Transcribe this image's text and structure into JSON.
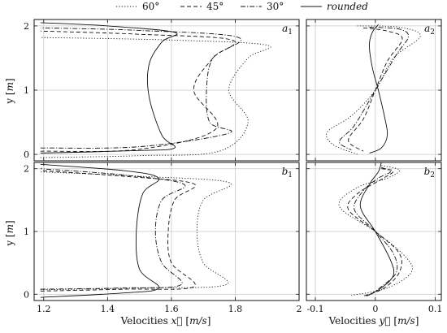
{
  "legend": [
    {
      "key": "s60",
      "label": "60°",
      "dash": "1.2 2.2"
    },
    {
      "key": "s45",
      "label": "45°",
      "dash": "5 3"
    },
    {
      "key": "s30",
      "label": "30°",
      "dash": "6 2 1.2 2"
    },
    {
      "key": "rounded",
      "label": "rounded",
      "dash": ""
    }
  ],
  "axes": {
    "ylabel_var": "y",
    "ylabel_unit": "m",
    "xlabel_left_prefix": "Velocities ",
    "xlabel_left_var": "x⃗",
    "xlabel_left_unit": "m/s",
    "xlabel_right_prefix": "Velocities ",
    "xlabel_right_var": "y⃗",
    "xlabel_right_unit": "m/s"
  },
  "panel_labels": {
    "a1": {
      "base": "a",
      "sub": "1"
    },
    "a2": {
      "base": "a",
      "sub": "2"
    },
    "b1": {
      "base": "b",
      "sub": "1"
    },
    "b2": {
      "base": "b",
      "sub": "2"
    }
  },
  "chart_data": [
    {
      "id": "a1",
      "type": "line",
      "xlim": [
        1.17,
        2.0
      ],
      "ylim": [
        -0.1,
        2.1
      ],
      "grid": true,
      "xticks": [
        1.2,
        1.4,
        1.6,
        1.8,
        2.0
      ],
      "yticks": [
        0,
        1,
        2
      ],
      "series": [
        {
          "name": "60°",
          "points": [
            [
              1.19,
              -0.05
            ],
            [
              1.5,
              -0.02
            ],
            [
              1.75,
              0.05
            ],
            [
              1.84,
              0.5
            ],
            [
              1.78,
              1.0
            ],
            [
              1.84,
              1.5
            ],
            [
              1.9,
              1.7
            ],
            [
              1.6,
              1.78
            ],
            [
              1.19,
              1.82
            ]
          ]
        },
        {
          "name": "45°",
          "points": [
            [
              1.19,
              0.05
            ],
            [
              1.5,
              0.08
            ],
            [
              1.74,
              0.4
            ],
            [
              1.67,
              1.0
            ],
            [
              1.73,
              1.5
            ],
            [
              1.79,
              1.78
            ],
            [
              1.5,
              1.87
            ],
            [
              1.19,
              1.92
            ]
          ]
        },
        {
          "name": "30°",
          "points": [
            [
              1.19,
              0.1
            ],
            [
              1.5,
              0.12
            ],
            [
              1.78,
              0.33
            ],
            [
              1.72,
              0.5
            ],
            [
              1.71,
              1.0
            ],
            [
              1.73,
              1.5
            ],
            [
              1.81,
              1.82
            ],
            [
              1.5,
              1.93
            ],
            [
              1.19,
              1.97
            ]
          ]
        },
        {
          "name": "rounded",
          "points": [
            [
              1.19,
              0.02
            ],
            [
              1.5,
              0.06
            ],
            [
              1.61,
              0.1
            ],
            [
              1.57,
              0.3
            ],
            [
              1.53,
              0.9
            ],
            [
              1.53,
              1.4
            ],
            [
              1.57,
              1.75
            ],
            [
              1.61,
              1.9
            ],
            [
              1.4,
              2.0
            ],
            [
              1.19,
              2.05
            ]
          ]
        }
      ]
    },
    {
      "id": "a2",
      "type": "line",
      "xlim": [
        -0.115,
        0.11
      ],
      "ylim": [
        -0.1,
        2.1
      ],
      "grid": true,
      "xticks": [
        -0.1,
        0,
        0.1
      ],
      "yticks": [
        0,
        1,
        2
      ],
      "series": [
        {
          "name": "60°",
          "points": [
            [
              -0.03,
              2.0
            ],
            [
              0.04,
              1.98
            ],
            [
              0.075,
              1.84
            ],
            [
              0.03,
              1.5
            ],
            [
              0.0,
              1.0
            ],
            [
              -0.04,
              0.6
            ],
            [
              -0.08,
              0.35
            ],
            [
              -0.07,
              0.15
            ],
            [
              -0.03,
              0.0
            ]
          ]
        },
        {
          "name": "45°",
          "points": [
            [
              -0.02,
              1.97
            ],
            [
              0.02,
              1.92
            ],
            [
              0.045,
              1.8
            ],
            [
              0.02,
              1.45
            ],
            [
              0.0,
              1.0
            ],
            [
              -0.02,
              0.55
            ],
            [
              -0.045,
              0.22
            ],
            [
              -0.02,
              0.05
            ]
          ]
        },
        {
          "name": "30°",
          "points": [
            [
              -0.01,
              1.98
            ],
            [
              0.04,
              1.95
            ],
            [
              0.055,
              1.83
            ],
            [
              0.035,
              1.55
            ],
            [
              0.0,
              1.0
            ],
            [
              -0.035,
              0.45
            ],
            [
              -0.06,
              0.2
            ],
            [
              -0.04,
              0.07
            ]
          ]
        },
        {
          "name": "rounded",
          "points": [
            [
              0.005,
              2.02
            ],
            [
              -0.005,
              1.9
            ],
            [
              -0.01,
              1.7
            ],
            [
              -0.005,
              1.35
            ],
            [
              0.005,
              1.0
            ],
            [
              0.015,
              0.6
            ],
            [
              0.02,
              0.3
            ],
            [
              0.01,
              0.1
            ],
            [
              -0.01,
              0.02
            ]
          ]
        }
      ]
    },
    {
      "id": "b1",
      "type": "line",
      "xlim": [
        1.17,
        2.0
      ],
      "ylim": [
        -0.1,
        2.1
      ],
      "grid": true,
      "xticks": [
        1.2,
        1.4,
        1.6,
        1.8,
        2.0
      ],
      "yticks": [
        0,
        1,
        2
      ],
      "series": [
        {
          "name": "60°",
          "points": [
            [
              1.19,
              0.07
            ],
            [
              1.5,
              0.1
            ],
            [
              1.77,
              0.15
            ],
            [
              1.7,
              0.5
            ],
            [
              1.68,
              1.0
            ],
            [
              1.7,
              1.5
            ],
            [
              1.78,
              1.78
            ],
            [
              1.5,
              1.88
            ],
            [
              1.19,
              1.95
            ]
          ]
        },
        {
          "name": "45°",
          "points": [
            [
              1.19,
              0.05
            ],
            [
              1.45,
              0.08
            ],
            [
              1.67,
              0.12
            ],
            [
              1.6,
              0.5
            ],
            [
              1.59,
              1.0
            ],
            [
              1.61,
              1.5
            ],
            [
              1.67,
              1.76
            ],
            [
              1.45,
              1.88
            ],
            [
              1.19,
              1.97
            ]
          ]
        },
        {
          "name": "30°",
          "points": [
            [
              1.19,
              0.08
            ],
            [
              1.45,
              0.1
            ],
            [
              1.63,
              0.15
            ],
            [
              1.57,
              0.5
            ],
            [
              1.55,
              1.0
            ],
            [
              1.57,
              1.5
            ],
            [
              1.64,
              1.75
            ],
            [
              1.45,
              1.9
            ],
            [
              1.19,
              2.0
            ]
          ]
        },
        {
          "name": "rounded",
          "points": [
            [
              1.19,
              -0.05
            ],
            [
              1.45,
              0.02
            ],
            [
              1.56,
              0.1
            ],
            [
              1.5,
              0.4
            ],
            [
              1.49,
              1.0
            ],
            [
              1.51,
              1.6
            ],
            [
              1.56,
              1.85
            ],
            [
              1.45,
              1.97
            ],
            [
              1.19,
              2.07
            ]
          ]
        }
      ]
    },
    {
      "id": "b2",
      "type": "line",
      "xlim": [
        -0.115,
        0.11
      ],
      "ylim": [
        -0.1,
        2.1
      ],
      "grid": true,
      "xticks": [
        -0.1,
        0,
        0.1
      ],
      "yticks": [
        0,
        1,
        2
      ],
      "series": [
        {
          "name": "60°",
          "points": [
            [
              0.01,
              2.05
            ],
            [
              0.04,
              1.98
            ],
            [
              0.02,
              1.85
            ],
            [
              -0.03,
              1.7
            ],
            [
              -0.06,
              1.4
            ],
            [
              0.0,
              1.0
            ],
            [
              0.05,
              0.6
            ],
            [
              0.06,
              0.35
            ],
            [
              0.02,
              0.1
            ],
            [
              -0.04,
              -0.02
            ]
          ]
        },
        {
          "name": "45°",
          "points": [
            [
              0.01,
              2.0
            ],
            [
              0.03,
              1.96
            ],
            [
              0.01,
              1.83
            ],
            [
              -0.03,
              1.6
            ],
            [
              -0.045,
              1.35
            ],
            [
              0.0,
              1.0
            ],
            [
              0.04,
              0.65
            ],
            [
              0.04,
              0.35
            ],
            [
              0.015,
              0.1
            ],
            [
              -0.02,
              -0.03
            ]
          ]
        },
        {
          "name": "30°",
          "points": [
            [
              0.01,
              2.02
            ],
            [
              0.025,
              1.95
            ],
            [
              0.005,
              1.85
            ],
            [
              -0.02,
              1.65
            ],
            [
              -0.035,
              1.35
            ],
            [
              0.0,
              1.0
            ],
            [
              0.03,
              0.65
            ],
            [
              0.035,
              0.35
            ],
            [
              0.01,
              0.12
            ],
            [
              -0.01,
              -0.02
            ]
          ]
        },
        {
          "name": "rounded",
          "points": [
            [
              0.01,
              2.1
            ],
            [
              0.005,
              1.95
            ],
            [
              -0.01,
              1.75
            ],
            [
              -0.025,
              1.4
            ],
            [
              0.0,
              1.0
            ],
            [
              0.025,
              0.55
            ],
            [
              0.03,
              0.3
            ],
            [
              0.01,
              0.1
            ],
            [
              -0.015,
              -0.03
            ]
          ]
        }
      ]
    }
  ]
}
